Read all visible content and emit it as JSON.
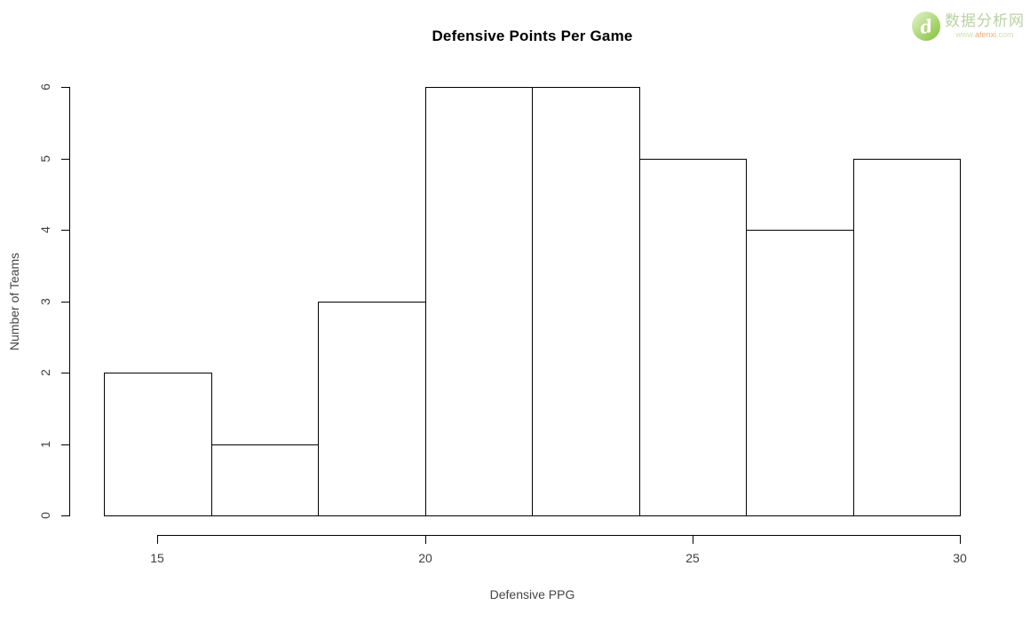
{
  "watermark": {
    "logo_glyph": "d",
    "site_name": "数据分析网",
    "url_prefix": "www.",
    "url_mid": "afenxi",
    "url_suffix": ".com",
    "circle_green": "#8fc84b",
    "text_green": "#b9d2a2",
    "text_orange": "#efaa74"
  },
  "chart_data": {
    "type": "bar",
    "subtype": "histogram",
    "title": "Defensive Points Per Game",
    "xlabel": "Defensive PPG",
    "ylabel": "Number of Teams",
    "bins": [
      {
        "from": 14,
        "to": 16,
        "count": 2
      },
      {
        "from": 16,
        "to": 18,
        "count": 1
      },
      {
        "from": 18,
        "to": 20,
        "count": 3
      },
      {
        "from": 20,
        "to": 22,
        "count": 6
      },
      {
        "from": 22,
        "to": 24,
        "count": 6
      },
      {
        "from": 24,
        "to": 26,
        "count": 5
      },
      {
        "from": 26,
        "to": 28,
        "count": 4
      },
      {
        "from": 28,
        "to": 30,
        "count": 5
      }
    ],
    "x_ticks": [
      15,
      20,
      25,
      30
    ],
    "y_ticks": [
      0,
      1,
      2,
      3,
      4,
      5,
      6
    ],
    "xlim": [
      14,
      30
    ],
    "ylim": [
      0,
      6
    ],
    "bar_fill": "#ffffff",
    "bar_border": "#000000",
    "grid": false,
    "legend": "none"
  }
}
